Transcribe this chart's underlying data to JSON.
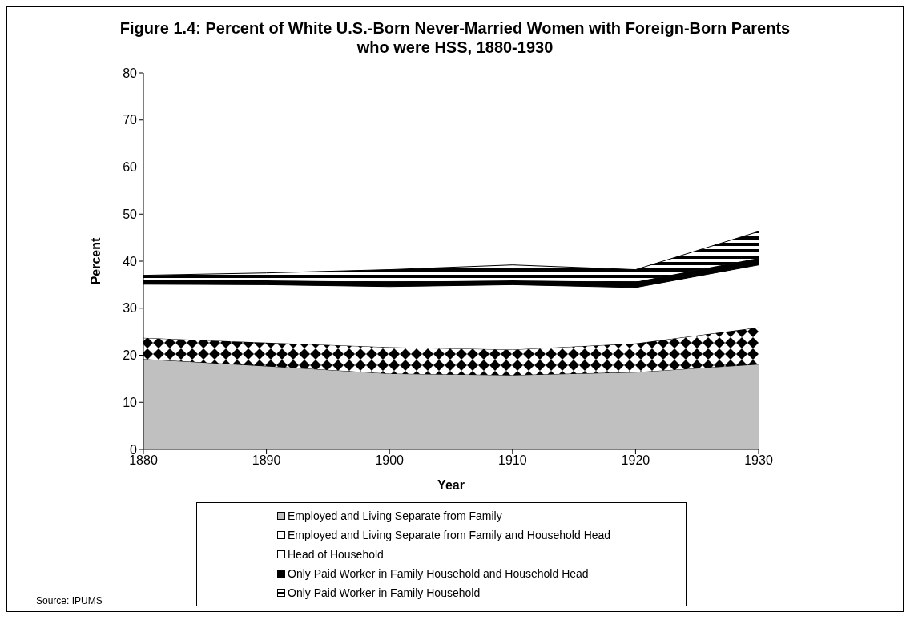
{
  "chart_data": {
    "type": "area",
    "title": "Figure 1.4: Percent of White U.S.-Born Never-Married Women with Foreign-Born Parents who were HSS, 1880-1930",
    "xlabel": "Year",
    "ylabel": "Percent",
    "x": [
      1880,
      1890,
      1900,
      1910,
      1920,
      1930
    ],
    "stacked": true,
    "series": [
      {
        "name": "Employed and Living Separate from Family",
        "color": "#c0c0c0",
        "values": [
          19.2,
          17.7,
          16.1,
          15.8,
          16.4,
          18.1
        ]
      },
      {
        "name": "Employed and Living Separate from Family and Household Head",
        "color": "#000000",
        "values": [
          4.5,
          5.0,
          5.6,
          5.4,
          6.1,
          7.8
        ]
      },
      {
        "name": "Head of Household",
        "color": "#ffffff",
        "values": [
          11.4,
          12.3,
          12.9,
          13.8,
          11.9,
          13.3
        ]
      },
      {
        "name": "Only Paid Worker in Family Household and Household Head",
        "color": "#000000",
        "values": [
          0.8,
          0.9,
          1.0,
          0.9,
          1.2,
          1.5
        ]
      },
      {
        "name": "Only Paid Worker in Family Household",
        "color": "#000000",
        "values": [
          1.1,
          1.6,
          2.6,
          3.3,
          2.6,
          5.6
        ]
      }
    ],
    "xlim": [
      1880,
      1930
    ],
    "xticks": [
      1880,
      1890,
      1900,
      1910,
      1920,
      1930
    ],
    "ylim": [
      0,
      80
    ],
    "yticks": [
      0,
      10,
      20,
      30,
      40,
      50,
      60,
      70,
      80
    ],
    "grid": false,
    "legend": "bottom",
    "annotations": [
      "Source: IPUMS"
    ]
  }
}
